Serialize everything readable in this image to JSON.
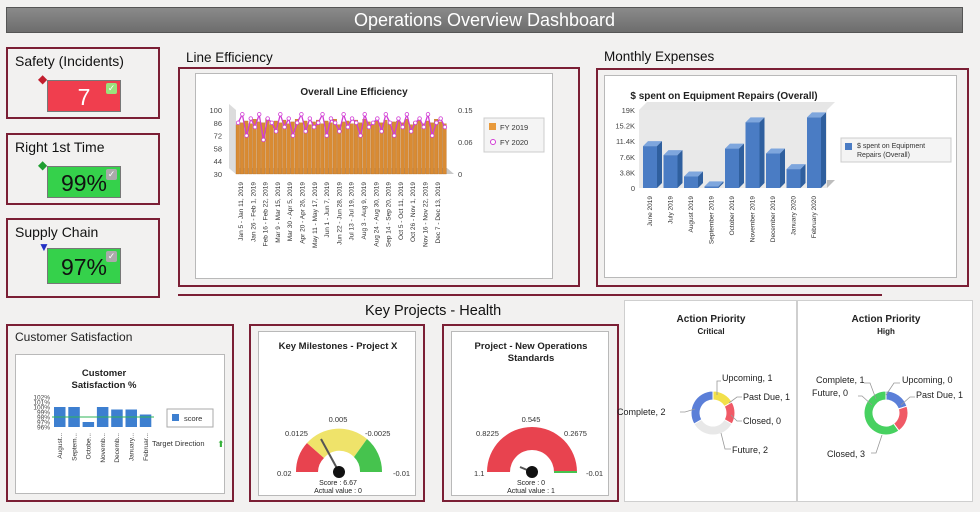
{
  "header": {
    "title": "Operations Overview Dashboard"
  },
  "kpis": [
    {
      "label": "Safety (Incidents)",
      "value": "7",
      "color": "#f03e4e"
    },
    {
      "label": "Right 1st Time",
      "value": "99%",
      "color": "#35d14b"
    },
    {
      "label": "Supply Chain",
      "value": "97%",
      "color": "#35d14b"
    }
  ],
  "line_efficiency": {
    "section_title": "Line Efficiency",
    "chart_title": "Overall Line Efficiency",
    "y_ticks": [
      "100",
      "86",
      "72",
      "58",
      "44",
      "30"
    ],
    "y2_ticks": [
      "0.15",
      "0.06",
      "0"
    ],
    "legend": [
      "FY 2019",
      "FY 2020"
    ],
    "x_labels": [
      "Jan 5 - Jan 11, 2019",
      "Jan 26 - Feb 1, 2019",
      "Feb 16 - Feb 22, 2019",
      "Mar 9 - Mar 15, 2019",
      "Mar 30 - Apr 5, 2019",
      "Apr 20 - Apr 26, 2019",
      "May 11 - May 17, 2019",
      "Jun 1 - Jun 7, 2019",
      "Jun 22 - Jun 28, 2019",
      "Jul 13 - Jul 19, 2019",
      "Aug 3 - Aug 9, 2019",
      "Aug 24 - Aug 30, 2019",
      "Sep 14 - Sep 20, 2019",
      "Oct 5 - Oct 11, 2019",
      "Oct 26 - Nov 1, 2019",
      "Nov 16 - Nov 22, 2019",
      "Dec 7 - Dec 13, 2019"
    ]
  },
  "monthly_expenses": {
    "section_title": "Monthly Expenses",
    "chart_title": "$ spent on Equipment Repairs (Overall)",
    "legend": "$ spent on Equipment Repairs (Overall)",
    "y_ticks": [
      "19K",
      "15.2K",
      "11.4K",
      "7.6K",
      "3.8K",
      "0"
    ]
  },
  "key_projects": {
    "title": "Key Projects - Health"
  },
  "customer_satisfaction": {
    "section_title": "Customer Satisfaction",
    "chart_title_1": "Customer",
    "chart_title_2": "Satisfaction %",
    "y_ticks": [
      "102%",
      "101%",
      "100%",
      "99%",
      "98%",
      "97%",
      "96%"
    ],
    "x_labels": [
      "August...",
      "Septem...",
      "Octobe...",
      "Novemb...",
      "Decemb...",
      "January...",
      "Februar..."
    ],
    "legend": "score",
    "target_label": "Target Direction"
  },
  "gauge1": {
    "title": "Key Milestones - Project X",
    "ticks": [
      "0.005",
      "0.0125",
      "-0.0025",
      "0.02",
      "-0.01"
    ],
    "score": "Score : 6.67",
    "actual": "Actual value : 0"
  },
  "gauge2": {
    "title_1": "Project - New Operations",
    "title_2": "Standards",
    "ticks": [
      "0.545",
      "0.8225",
      "0.2675",
      "1.1",
      "-0.01"
    ],
    "score": "Score : 0",
    "actual": "Actual value : 1"
  },
  "action_critical": {
    "title": "Action Priority",
    "subtitle": "Critical",
    "labels": [
      "Upcoming, 1",
      "Past Due, 1",
      "Closed, 0",
      "Future, 2",
      "Complete, 2"
    ]
  },
  "action_high": {
    "title": "Action Priority",
    "subtitle": "High",
    "labels": [
      "Complete, 1",
      "Upcoming, 0",
      "Future, 0",
      "Past Due, 1",
      "Closed, 3"
    ]
  },
  "chart_data": [
    {
      "type": "bar",
      "title": "Overall Line Efficiency",
      "series": [
        {
          "name": "FY 2019",
          "values": [
            84,
            86,
            88,
            85,
            90,
            87,
            86,
            91,
            84,
            88,
            86,
            89,
            85,
            87,
            90,
            86,
            88,
            84,
            87,
            89,
            85,
            88,
            86,
            90,
            84,
            87,
            88,
            85,
            89,
            86,
            90,
            87,
            84,
            88,
            86,
            89,
            85,
            87,
            88,
            86,
            90,
            84,
            87,
            89,
            85,
            88,
            86,
            90,
            87,
            85
          ]
        },
        {
          "name": "FY 2020",
          "values": [
            0.12,
            0.14,
            0.09,
            0.13,
            0.11,
            0.14,
            0.08,
            0.13,
            0.12,
            0.1,
            0.14,
            0.11,
            0.13,
            0.09,
            0.12,
            0.14,
            0.1,
            0.13,
            0.11,
            0.12,
            0.14,
            0.09,
            0.13,
            0.12,
            0.1,
            0.14,
            0.11,
            0.13,
            0.12,
            0.09,
            0.14,
            0.11,
            0.12,
            0.13,
            0.1,
            0.14,
            0.12,
            0.09,
            0.13,
            0.11,
            0.14,
            0.1,
            0.12,
            0.13,
            0.11,
            0.14,
            0.09,
            0.12,
            0.13,
            0.11
          ]
        }
      ],
      "ylim": [
        30,
        100
      ],
      "y2lim": [
        0,
        0.15
      ]
    },
    {
      "type": "bar",
      "title": "$ spent on Equipment Repairs (Overall)",
      "categories": [
        "June 2019",
        "July 2019",
        "August 2019",
        "September 2019",
        "October 2019",
        "November 2019",
        "December 2019",
        "January 2020",
        "February 2020"
      ],
      "values": [
        10200,
        8000,
        2800,
        400,
        9600,
        16000,
        8400,
        4600,
        17200
      ],
      "ylim": [
        0,
        19000
      ]
    },
    {
      "type": "bar",
      "title": "Customer Satisfaction %",
      "categories": [
        "August...",
        "Septem...",
        "Octobe...",
        "Novemb...",
        "Decemb...",
        "January...",
        "Februar..."
      ],
      "values": [
        100,
        100,
        97,
        100,
        99.5,
        99.5,
        98.5
      ],
      "ylim": [
        96,
        102
      ]
    },
    {
      "type": "pie",
      "title": "Action Priority - Critical",
      "categories": [
        "Upcoming",
        "Past Due",
        "Closed",
        "Future",
        "Complete"
      ],
      "values": [
        1,
        1,
        0,
        2,
        2
      ]
    },
    {
      "type": "pie",
      "title": "Action Priority - High",
      "categories": [
        "Complete",
        "Upcoming",
        "Future",
        "Past Due",
        "Closed"
      ],
      "values": [
        1,
        0,
        0,
        1,
        3
      ]
    }
  ]
}
